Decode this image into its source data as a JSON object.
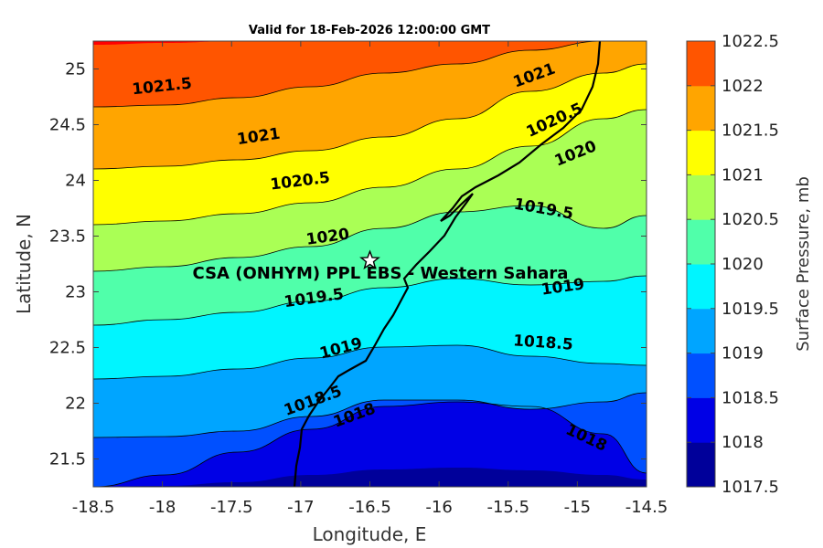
{
  "chart_data": {
    "type": "contour map",
    "title": "Valid for 18-Feb-2026 12:00:00 GMT",
    "xlabel": "Longitude, E",
    "ylabel": "Latitude, N",
    "xlim": [
      -18.5,
      -14.5
    ],
    "ylim": [
      21.25,
      25.25
    ],
    "xticks": [
      "-18.5",
      "-18",
      "-17.5",
      "-17",
      "-16.5",
      "-16",
      "-15.5",
      "-15",
      "-14.5"
    ],
    "yticks": [
      "21.5",
      "22",
      "22.5",
      "23",
      "23.5",
      "24",
      "24.5",
      "25"
    ],
    "colorbar": {
      "label": "Surface Pressure, mb",
      "levels": [
        "1017.5",
        "1018",
        "1018.5",
        "1019",
        "1019.5",
        "1020",
        "1020.5",
        "1021",
        "1021.5",
        "1022",
        "1022.5"
      ],
      "colors": [
        "#00009a",
        "#0000e6",
        "#0050ff",
        "#00a5ff",
        "#00f5ff",
        "#50ffaa",
        "#aaff55",
        "#ffff00",
        "#ffa500",
        "#ff5500",
        "#ff0000"
      ]
    },
    "contour_labels": [
      {
        "text": "1021.5",
        "lon": -18.0,
        "lat": 24.8,
        "angle": -6
      },
      {
        "text": "1021",
        "lon": -17.3,
        "lat": 24.35,
        "angle": -8
      },
      {
        "text": "1020.5",
        "lon": -17.0,
        "lat": 23.95,
        "angle": -7
      },
      {
        "text": "1020",
        "lon": -16.8,
        "lat": 23.45,
        "angle": -8
      },
      {
        "text": "1019.5",
        "lon": -16.9,
        "lat": 22.9,
        "angle": -8
      },
      {
        "text": "1019",
        "lon": -16.7,
        "lat": 22.45,
        "angle": -15
      },
      {
        "text": "1018.5",
        "lon": -16.9,
        "lat": 21.98,
        "angle": -20
      },
      {
        "text": "1018",
        "lon": -16.6,
        "lat": 21.85,
        "angle": -20
      },
      {
        "text": "1021",
        "lon": -15.3,
        "lat": 24.9,
        "angle": -20
      },
      {
        "text": "1020.5",
        "lon": -15.15,
        "lat": 24.5,
        "angle": -25
      },
      {
        "text": "1020",
        "lon": -15.0,
        "lat": 24.2,
        "angle": -22
      },
      {
        "text": "1019.5",
        "lon": -15.25,
        "lat": 23.7,
        "angle": 10
      },
      {
        "text": "1019",
        "lon": -15.1,
        "lat": 23.0,
        "angle": -8
      },
      {
        "text": "1018.5",
        "lon": -15.25,
        "lat": 22.5,
        "angle": 4
      },
      {
        "text": "1018",
        "lon": -14.95,
        "lat": 21.65,
        "angle": 25
      }
    ],
    "station": {
      "name": "CSA (ONHYM) PPL EBS - Western Sahara",
      "lon": -16.5,
      "lat": 23.28,
      "marker": "star-icon"
    }
  }
}
